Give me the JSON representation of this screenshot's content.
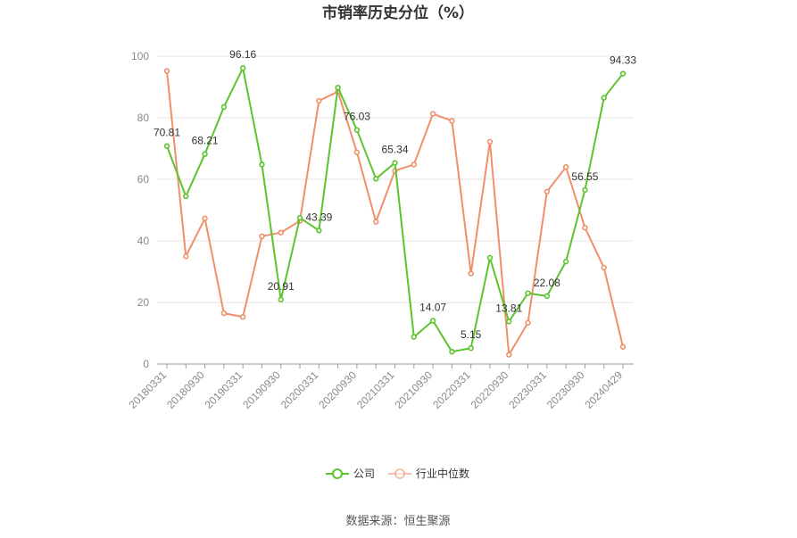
{
  "chart_data": {
    "type": "line",
    "title": "市销率历史分位（%）",
    "source": "数据来源：恒生聚源",
    "ylim": [
      0,
      100
    ],
    "yticks": [
      0,
      20,
      40,
      60,
      80,
      100
    ],
    "grid": true,
    "legend_position": "bottom-center",
    "x_tick_labels": [
      "20180331",
      "20180930",
      "20190331",
      "20190930",
      "20200331",
      "20200930",
      "20210331",
      "20210930",
      "20220331",
      "20220930",
      "20230331",
      "20230930",
      "20240429"
    ],
    "x_tick_positions": [
      0,
      2,
      4,
      6,
      8,
      10,
      12,
      14,
      16,
      18,
      20,
      22,
      24
    ],
    "series": [
      {
        "name": "公司",
        "color": "#5cc42e",
        "values": [
          70.81,
          54.5,
          68.21,
          83.5,
          96.16,
          64.8,
          20.91,
          47.5,
          43.39,
          89.8,
          76.03,
          60.2,
          65.34,
          8.8,
          14.07,
          4.0,
          5.15,
          34.5,
          13.81,
          23.0,
          22.08,
          33.3,
          56.55,
          86.5,
          94.33
        ],
        "labeled_points": [
          {
            "index": 0,
            "text": "70.81"
          },
          {
            "index": 2,
            "text": "68.21"
          },
          {
            "index": 4,
            "text": "96.16"
          },
          {
            "index": 6,
            "text": "20.91"
          },
          {
            "index": 8,
            "text": "43.39"
          },
          {
            "index": 10,
            "text": "76.03"
          },
          {
            "index": 12,
            "text": "65.34"
          },
          {
            "index": 14,
            "text": "14.07"
          },
          {
            "index": 16,
            "text": "5.15"
          },
          {
            "index": 18,
            "text": "13.81"
          },
          {
            "index": 20,
            "text": "22.08"
          },
          {
            "index": 22,
            "text": "56.55"
          },
          {
            "index": 24,
            "text": "94.33"
          }
        ]
      },
      {
        "name": "行业中位数",
        "color": "#f0906a",
        "values": [
          95.2,
          35.0,
          47.3,
          16.5,
          15.3,
          41.5,
          42.7,
          46.5,
          85.5,
          88.5,
          68.8,
          46.2,
          62.8,
          64.8,
          81.3,
          79.0,
          29.4,
          72.2,
          3.0,
          13.4,
          56.0,
          64.0,
          44.3,
          31.3,
          5.6
        ],
        "labeled_points": []
      }
    ]
  }
}
